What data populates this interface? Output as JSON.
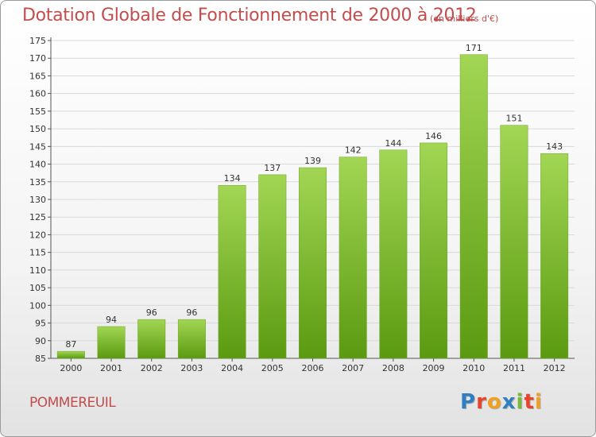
{
  "header": {
    "title": "Dotation Globale de Fonctionnement de 2000 à 2012",
    "subtitle": "(en milliers d'€)"
  },
  "footer": {
    "commune": "POMMEREUIL",
    "logo_letters": [
      "P",
      "r",
      "o",
      "x",
      "i",
      "t",
      "i"
    ],
    "logo_colors": [
      "#2f7fc1",
      "#e8432b",
      "#f0a020",
      "#2f7fc1",
      "#78b93c",
      "#e8432b",
      "#f0a020"
    ]
  },
  "colors": {
    "title": "#c24d4d",
    "bar_light": "#a2d654",
    "bar_dark": "#5a9a10"
  },
  "chart_data": {
    "type": "bar",
    "title": "Dotation Globale de Fonctionnement de 2000 à 2012",
    "subtitle": "(en milliers d'€)",
    "xlabel": "",
    "ylabel": "",
    "categories": [
      "2000",
      "2001",
      "2002",
      "2003",
      "2004",
      "2005",
      "2006",
      "2007",
      "2008",
      "2009",
      "2010",
      "2011",
      "2012"
    ],
    "values": [
      87,
      94,
      96,
      96,
      134,
      137,
      139,
      142,
      144,
      146,
      171,
      151,
      143
    ],
    "ylim": [
      85,
      175
    ],
    "yticks": [
      85,
      90,
      95,
      100,
      105,
      110,
      115,
      120,
      125,
      130,
      135,
      140,
      145,
      150,
      155,
      160,
      165,
      170,
      175
    ],
    "grid": true,
    "legend": "none"
  }
}
